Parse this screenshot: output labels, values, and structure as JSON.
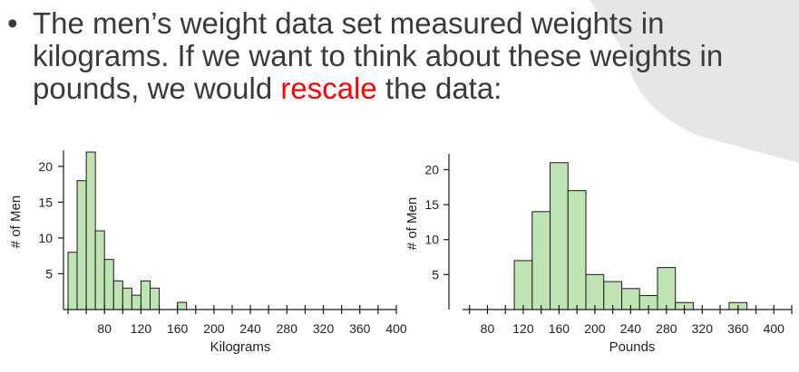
{
  "slide": {
    "bullet": "•",
    "text_before": "The men’s weight data set measured weights in kilograms. If we want to think about these weights in pounds, we would ",
    "highlight": "rescale",
    "text_after": " the data:",
    "highlight_color": "#ff0000"
  },
  "chart_data": [
    {
      "type": "bar",
      "xlabel": "Kilograms",
      "ylabel": "# of Men",
      "xlim": [
        40,
        400
      ],
      "ylim": [
        0,
        22
      ],
      "bin_width": 10,
      "bin_starts": [
        40,
        50,
        60,
        70,
        80,
        90,
        100,
        110,
        120,
        130,
        140,
        150,
        160
      ],
      "values": [
        8,
        18,
        22,
        11,
        7,
        4,
        3,
        2,
        4,
        3,
        0,
        0,
        1
      ],
      "x_ticks": [
        80,
        120,
        160,
        200,
        240,
        280,
        320,
        360,
        400
      ],
      "y_ticks": [
        5,
        10,
        15,
        20
      ],
      "bar_color": "#bfe3b2"
    },
    {
      "type": "bar",
      "xlabel": "Pounds",
      "ylabel": "# of Men",
      "xlim": [
        40,
        420
      ],
      "ylim": [
        0,
        22
      ],
      "bin_width": 20,
      "bin_starts": [
        110,
        130,
        150,
        170,
        190,
        210,
        230,
        250,
        270,
        290,
        310,
        330,
        350
      ],
      "values": [
        7,
        14,
        21,
        17,
        5,
        4,
        3,
        2,
        6,
        1,
        0,
        0,
        1
      ],
      "x_ticks": [
        80,
        120,
        160,
        200,
        240,
        280,
        320,
        360,
        400
      ],
      "y_ticks": [
        5,
        10,
        15,
        20
      ],
      "bar_color": "#bfe3b2"
    }
  ]
}
